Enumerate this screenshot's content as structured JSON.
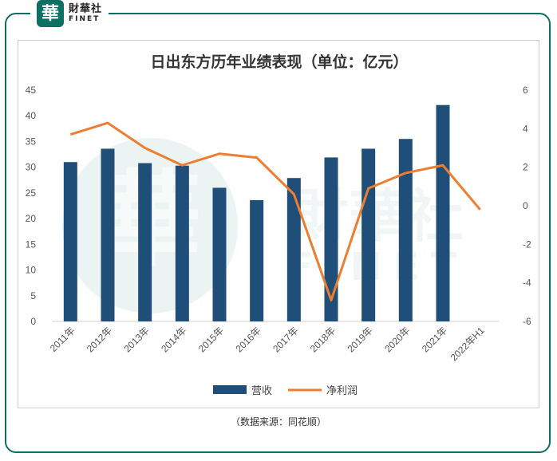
{
  "brand": {
    "seal_char": "華",
    "name_cn": "財華社",
    "name_en": "FINET",
    "color": "#0e6f63"
  },
  "source_note": "（数据来源：同花顺）",
  "chart_data": {
    "type": "bar+line",
    "title": "日出东方历年业绩表现（单位：亿元）",
    "categories": [
      "2011年",
      "2012年",
      "2013年",
      "2014年",
      "2015年",
      "2016年",
      "2017年",
      "2018年",
      "2019年",
      "2020年",
      "2021年",
      "2022年H1"
    ],
    "series": [
      {
        "name": "营收",
        "type": "bar",
        "axis": "left",
        "color": "#1f4e79",
        "values": [
          31.0,
          33.6,
          30.8,
          30.3,
          26.0,
          23.6,
          27.9,
          31.9,
          33.6,
          35.5,
          42.1,
          null
        ]
      },
      {
        "name": "净利润",
        "type": "line",
        "axis": "right",
        "color": "#ed7d31",
        "values": [
          3.7,
          4.3,
          3.0,
          2.1,
          2.7,
          2.5,
          0.6,
          -4.9,
          0.9,
          1.7,
          2.1,
          -0.2
        ]
      }
    ],
    "y_left": {
      "min": 0,
      "max": 45,
      "step": 5,
      "ticks": [
        "0",
        "5",
        "10",
        "15",
        "20",
        "25",
        "30",
        "35",
        "40",
        "45"
      ]
    },
    "y_right": {
      "min": -6,
      "max": 6,
      "step": 2,
      "ticks": [
        "-6",
        "-4",
        "-2",
        "0",
        "2",
        "4",
        "6"
      ]
    },
    "grid": false,
    "legend_position": "bottom"
  }
}
